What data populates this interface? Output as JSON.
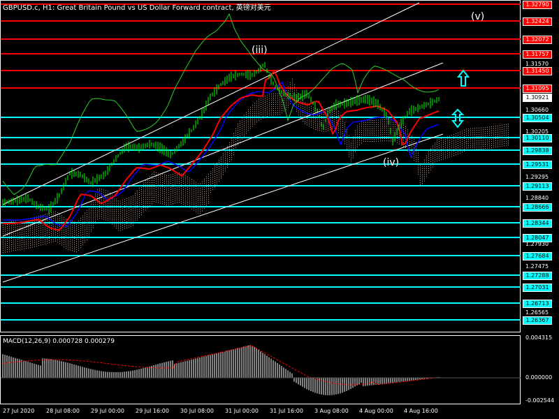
{
  "window": {
    "title": "GBPUSD.c, H1:  Great Britain Pound vs US Dollar Forward contract, 英镑对美元"
  },
  "waves": {
    "iii": "(iii)",
    "iv": "(iv)",
    "v": "(v)"
  },
  "price_axis": {
    "plain_labels": [
      "1.31570",
      "1.30660",
      "1.30205",
      "1.29295",
      "1.28840",
      "1.27930",
      "1.27475",
      "1.26565"
    ],
    "red_tags": [
      "1.32790",
      "1.32424",
      "1.32072",
      "1.31757",
      "1.31450",
      "1.31095"
    ],
    "cyan_tags": [
      "1.30504",
      "1.30110",
      "1.29838",
      "1.29531",
      "1.29113",
      "1.28666",
      "1.28344",
      "1.28047",
      "1.27684",
      "1.27288",
      "1.27031",
      "1.26713",
      "1.26367"
    ],
    "current_price": "1.30921"
  },
  "colors": {
    "background": "#000000",
    "resistance": "#ff0000",
    "support": "#00ffff",
    "price": "#00ff00",
    "ma_fast": "#ff0000",
    "ma_slow": "#0000ff",
    "macd": "#ffffff",
    "signal": "#ff0000"
  },
  "icons": {
    "up": "up-arrow-icon",
    "updown": "up-down-arrow-icon"
  },
  "macd": {
    "label": "MACD(12,26,9) 0.000728 0.000279",
    "axis": [
      "0.004315",
      "0.000000",
      "-0.002544"
    ]
  },
  "time_axis": {
    "labels": [
      "27 Jul 2020",
      "28 Jul 08:00",
      "29 Jul 00:00",
      "29 Jul 16:00",
      "30 Jul 08:00",
      "31 Jul 00:00",
      "31 Jul 16:00",
      "3 Aug 08:00",
      "4 Aug 00:00",
      "4 Aug 16:00"
    ]
  }
}
